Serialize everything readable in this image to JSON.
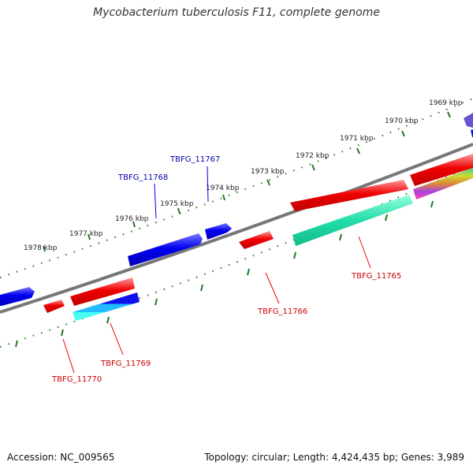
{
  "title": "Mycobacterium tuberculosis F11, complete genome",
  "footer": {
    "accession_text": "Accession: NC_009565",
    "info_text": "Topology: circular; Length: 4,424,435 bp; Genes: 3,989"
  },
  "kbp_labels": [
    "1969 kbp",
    "1970 kbp",
    "1971 kbp",
    "1972 kbp",
    "1973 kbp",
    "1974 kbp",
    "1975 kbp",
    "1976 kbp",
    "1977 kbp",
    "1978 kbp"
  ],
  "gene_labels": {
    "tbfg_11765": "TBFG_11765",
    "tbfg_11766": "TBFG_11766",
    "tbfg_11767": "TBFG_11767",
    "tbfg_11768": "TBFG_11768",
    "tbfg_11769": "TBFG_11769",
    "tbfg_11770": "TBFG_11770"
  },
  "colors": {
    "forward_strand": "#0000ee",
    "reverse_strand": "#ee0000",
    "forward_label": "#0000aa",
    "reverse_label": "#cc0000",
    "backbone": "#777777",
    "ruler_ticks": "#227722",
    "highlight": "#22ddaa"
  }
}
